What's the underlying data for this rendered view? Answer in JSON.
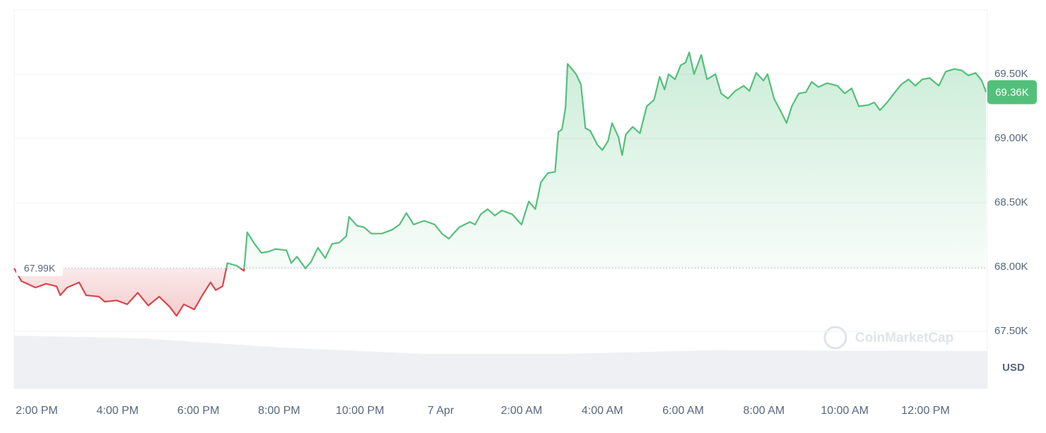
{
  "chart_data": {
    "type": "line",
    "x": [
      -0.56,
      -0.38,
      -0.03,
      0.23,
      0.49,
      0.58,
      0.75,
      1.05,
      1.22,
      1.54,
      1.68,
      1.98,
      2.24,
      2.5,
      2.76,
      3.03,
      3.29,
      3.46,
      3.64,
      3.9,
      4.08,
      4.3,
      4.43,
      4.6,
      4.72,
      4.95,
      5.13,
      5.21,
      5.39,
      5.56,
      5.74,
      5.91,
      6.18,
      6.3,
      6.44,
      6.65,
      6.79,
      6.96,
      7.14,
      7.31,
      7.49,
      7.66,
      7.73,
      7.93,
      8.1,
      8.28,
      8.54,
      8.8,
      8.98,
      9.15,
      9.33,
      9.59,
      9.85,
      10.03,
      10.2,
      10.46,
      10.72,
      10.85,
      10.99,
      11.16,
      11.34,
      11.51,
      11.77,
      12.0,
      12.18,
      12.34,
      12.48,
      12.65,
      12.83,
      12.91,
      13.0,
      13.09,
      13.14,
      13.35,
      13.47,
      13.58,
      13.7,
      13.88,
      14.0,
      14.14,
      14.24,
      14.4,
      14.49,
      14.58,
      14.75,
      14.93,
      15.1,
      15.28,
      15.42,
      15.54,
      15.64,
      15.8,
      15.94,
      16.06,
      16.15,
      16.27,
      16.45,
      16.59,
      16.8,
      16.94,
      17.11,
      17.29,
      17.5,
      17.64,
      17.81,
      17.99,
      18.09,
      18.25,
      18.42,
      18.56,
      18.69,
      18.86,
      19.04,
      19.18,
      19.35,
      19.56,
      19.82,
      20.0,
      20.17,
      20.35,
      20.58,
      20.73,
      20.87,
      21.05,
      21.22,
      21.4,
      21.58,
      21.75,
      21.92,
      22.1,
      22.33,
      22.5,
      22.71,
      22.89,
      23.06,
      23.24,
      23.39,
      23.5
    ],
    "series": [
      {
        "color": "#52c07a",
        "color_below": "#d9454a",
        "values": [
          67.99,
          67.89,
          67.84,
          67.87,
          67.85,
          67.78,
          67.84,
          67.88,
          67.78,
          67.77,
          67.73,
          67.74,
          67.71,
          67.8,
          67.7,
          67.77,
          67.69,
          67.62,
          67.71,
          67.67,
          67.77,
          67.88,
          67.82,
          67.85,
          68.03,
          68.01,
          67.97,
          68.27,
          68.18,
          68.11,
          68.12,
          68.14,
          68.13,
          68.03,
          68.08,
          67.99,
          68.04,
          68.15,
          68.07,
          68.18,
          68.19,
          68.24,
          68.39,
          68.32,
          68.31,
          68.26,
          68.26,
          68.29,
          68.33,
          68.42,
          68.33,
          68.36,
          68.33,
          68.26,
          68.22,
          68.31,
          68.35,
          68.33,
          68.41,
          68.45,
          68.4,
          68.44,
          68.41,
          68.33,
          68.51,
          68.45,
          68.66,
          68.73,
          68.74,
          69.05,
          69.07,
          69.24,
          69.58,
          69.5,
          69.42,
          69.08,
          69.06,
          68.95,
          68.91,
          68.98,
          69.12,
          69.01,
          68.87,
          69.03,
          69.09,
          69.04,
          69.25,
          69.3,
          69.48,
          69.38,
          69.5,
          69.46,
          69.57,
          69.59,
          69.67,
          69.5,
          69.65,
          69.46,
          69.5,
          69.35,
          69.31,
          69.37,
          69.41,
          69.37,
          69.51,
          69.45,
          69.5,
          69.31,
          69.21,
          69.12,
          69.25,
          69.35,
          69.36,
          69.44,
          69.4,
          69.43,
          69.41,
          69.35,
          69.39,
          69.25,
          69.26,
          69.28,
          69.22,
          69.28,
          69.35,
          69.42,
          69.46,
          69.41,
          69.46,
          69.47,
          69.41,
          69.52,
          69.54,
          69.53,
          69.49,
          69.51,
          69.45,
          69.36
        ]
      }
    ],
    "xlim": [
      -0.56,
      23.53
    ],
    "xticks": [
      {
        "value": 0,
        "label": "2:00 PM"
      },
      {
        "value": 2,
        "label": "4:00 PM"
      },
      {
        "value": 4,
        "label": "6:00 PM"
      },
      {
        "value": 6,
        "label": "8:00 PM"
      },
      {
        "value": 8,
        "label": "10:00 PM"
      },
      {
        "value": 10,
        "label": "7 Apr"
      },
      {
        "value": 12,
        "label": "2:00 AM"
      },
      {
        "value": 14,
        "label": "4:00 AM"
      },
      {
        "value": 16,
        "label": "6:00 AM"
      },
      {
        "value": 18,
        "label": "8:00 AM"
      },
      {
        "value": 20,
        "label": "10:00 AM"
      },
      {
        "value": 22,
        "label": "12:00 PM"
      }
    ],
    "ylim": [
      67,
      70
    ],
    "yticks": [
      {
        "value": 67.5,
        "label": "67.50K"
      },
      {
        "value": 68,
        "label": "68.00K"
      },
      {
        "value": 68.5,
        "label": "68.50K"
      },
      {
        "value": 69,
        "label": "69.00K"
      },
      {
        "value": 69.5,
        "label": "69.50K"
      }
    ],
    "grid": true,
    "baseline": {
      "value": 67.99,
      "label": "67.99K"
    },
    "last_price": {
      "value": 69.36,
      "label": "69.36K"
    },
    "watermark": "CoinMarketCap",
    "currency": "USD"
  }
}
